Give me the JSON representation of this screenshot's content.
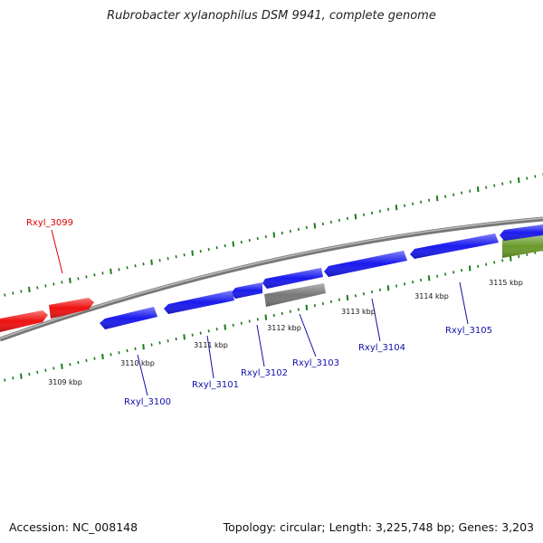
{
  "title": "Rubrobacter xylanophilus DSM 9941, complete genome",
  "footer": {
    "accession": "Accession: NC_008148",
    "summary": "Topology: circular; Length: 3,225,748 bp; Genes: 3,203"
  },
  "colors": {
    "backbone": "#888888",
    "tick": "#1a7a1a",
    "label_blue": "#1010aa",
    "label_red": "#dd0000"
  },
  "kbp_labels": [
    "3109 kbp",
    "3110 kbp",
    "3111 kbp",
    "3112 kbp",
    "3113 kbp",
    "3114 kbp",
    "3115 kbp"
  ],
  "genes": [
    {
      "name": "Rxyl_3099",
      "color": "#ee1111"
    },
    {
      "name": "Rxyl_3100",
      "color": "#1a1aee"
    },
    {
      "name": "Rxyl_3101",
      "color": "#1a1aee"
    },
    {
      "name": "Rxyl_3102",
      "color": "#1a1aee"
    },
    {
      "name": "Rxyl_3103",
      "color": "#777777"
    },
    {
      "name": "Rxyl_3104",
      "color": "#1a1aee"
    },
    {
      "name": "Rxyl_3105",
      "color": "#1a1aee"
    }
  ]
}
